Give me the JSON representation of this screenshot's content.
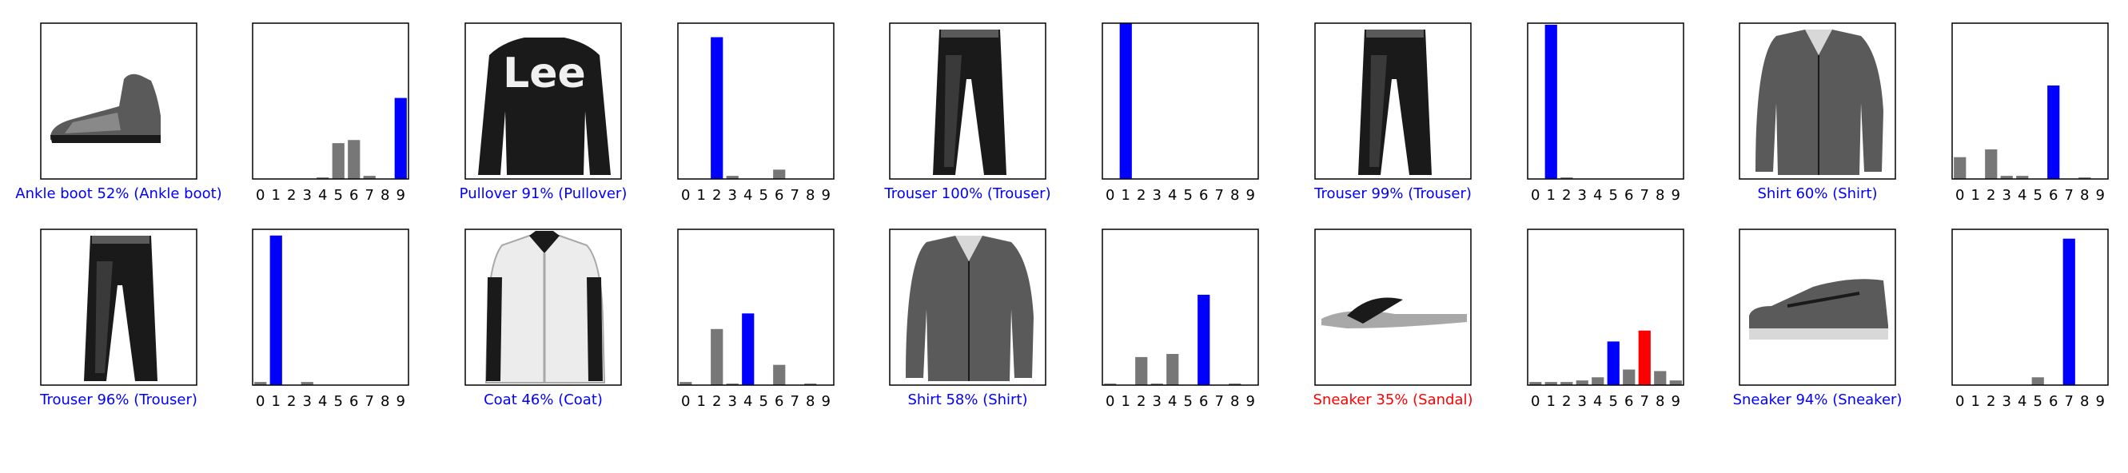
{
  "colors": {
    "correct": "#0000ff",
    "wrong": "#ff0000",
    "other_bar": "#777777",
    "frame": "#000000",
    "background": "#ffffff"
  },
  "chart_data": [
    {
      "type": "image",
      "name": "ankle-boot",
      "caption": "Ankle boot 52% (Ankle boot)",
      "correct": true
    },
    {
      "type": "bar",
      "categories": [
        "0",
        "1",
        "2",
        "3",
        "4",
        "5",
        "6",
        "7",
        "8",
        "9"
      ],
      "values": [
        0,
        0,
        0,
        0,
        0.01,
        0.23,
        0.25,
        0.02,
        0,
        0.52
      ],
      "predicted": 9,
      "true_label": 9,
      "ylim": [
        0,
        1
      ],
      "grid": false
    },
    {
      "type": "image",
      "name": "pullover",
      "caption": "Pullover 91% (Pullover)",
      "correct": true
    },
    {
      "type": "bar",
      "categories": [
        "0",
        "1",
        "2",
        "3",
        "4",
        "5",
        "6",
        "7",
        "8",
        "9"
      ],
      "values": [
        0,
        0,
        0.91,
        0.02,
        0,
        0,
        0.06,
        0,
        0,
        0
      ],
      "predicted": 2,
      "true_label": 2,
      "ylim": [
        0,
        1
      ],
      "grid": false
    },
    {
      "type": "image",
      "name": "trouser",
      "caption": "Trouser 100% (Trouser)",
      "correct": true
    },
    {
      "type": "bar",
      "categories": [
        "0",
        "1",
        "2",
        "3",
        "4",
        "5",
        "6",
        "7",
        "8",
        "9"
      ],
      "values": [
        0,
        1.0,
        0,
        0,
        0,
        0,
        0,
        0,
        0,
        0
      ],
      "predicted": 1,
      "true_label": 1,
      "ylim": [
        0,
        1
      ],
      "grid": false
    },
    {
      "type": "image",
      "name": "trouser",
      "caption": "Trouser 99% (Trouser)",
      "correct": true
    },
    {
      "type": "bar",
      "categories": [
        "0",
        "1",
        "2",
        "3",
        "4",
        "5",
        "6",
        "7",
        "8",
        "9"
      ],
      "values": [
        0,
        0.99,
        0.01,
        0,
        0,
        0,
        0,
        0,
        0,
        0
      ],
      "predicted": 1,
      "true_label": 1,
      "ylim": [
        0,
        1
      ],
      "grid": false
    },
    {
      "type": "image",
      "name": "shirt",
      "caption": "Shirt 60% (Shirt)",
      "correct": true
    },
    {
      "type": "bar",
      "categories": [
        "0",
        "1",
        "2",
        "3",
        "4",
        "5",
        "6",
        "7",
        "8",
        "9"
      ],
      "values": [
        0.14,
        0,
        0.19,
        0.02,
        0.02,
        0,
        0.6,
        0,
        0.01,
        0
      ],
      "predicted": 6,
      "true_label": 6,
      "ylim": [
        0,
        1
      ],
      "grid": false
    },
    {
      "type": "image",
      "name": "trouser",
      "caption": "Trouser 96% (Trouser)",
      "correct": true
    },
    {
      "type": "bar",
      "categories": [
        "0",
        "1",
        "2",
        "3",
        "4",
        "5",
        "6",
        "7",
        "8",
        "9"
      ],
      "values": [
        0.02,
        0.96,
        0,
        0.02,
        0,
        0,
        0,
        0,
        0,
        0
      ],
      "predicted": 1,
      "true_label": 1,
      "ylim": [
        0,
        1
      ],
      "grid": false
    },
    {
      "type": "image",
      "name": "coat",
      "caption": "Coat 46% (Coat)",
      "correct": true
    },
    {
      "type": "bar",
      "categories": [
        "0",
        "1",
        "2",
        "3",
        "4",
        "5",
        "6",
        "7",
        "8",
        "9"
      ],
      "values": [
        0.02,
        0,
        0.36,
        0.01,
        0.46,
        0,
        0.13,
        0,
        0.01,
        0
      ],
      "predicted": 4,
      "true_label": 4,
      "ylim": [
        0,
        1
      ],
      "grid": false
    },
    {
      "type": "image",
      "name": "shirt",
      "caption": "Shirt 58% (Shirt)",
      "correct": true
    },
    {
      "type": "bar",
      "categories": [
        "0",
        "1",
        "2",
        "3",
        "4",
        "5",
        "6",
        "7",
        "8",
        "9"
      ],
      "values": [
        0.01,
        0,
        0.18,
        0.01,
        0.2,
        0,
        0.58,
        0,
        0.01,
        0
      ],
      "predicted": 6,
      "true_label": 6,
      "ylim": [
        0,
        1
      ],
      "grid": false
    },
    {
      "type": "image",
      "name": "sandal",
      "caption": "Sneaker 35% (Sandal)",
      "correct": false
    },
    {
      "type": "bar",
      "categories": [
        "0",
        "1",
        "2",
        "3",
        "4",
        "5",
        "6",
        "7",
        "8",
        "9"
      ],
      "values": [
        0.02,
        0.02,
        0.02,
        0.03,
        0.05,
        0.28,
        0.1,
        0.35,
        0.09,
        0.03
      ],
      "predicted": 7,
      "true_label": 5,
      "ylim": [
        0,
        1
      ],
      "grid": false
    },
    {
      "type": "image",
      "name": "sneaker",
      "caption": "Sneaker 94% (Sneaker)",
      "correct": true
    },
    {
      "type": "bar",
      "categories": [
        "0",
        "1",
        "2",
        "3",
        "4",
        "5",
        "6",
        "7",
        "8",
        "9"
      ],
      "values": [
        0,
        0,
        0,
        0,
        0,
        0.05,
        0,
        0.94,
        0,
        0
      ],
      "predicted": 7,
      "true_label": 7,
      "ylim": [
        0,
        1
      ],
      "grid": false
    }
  ]
}
